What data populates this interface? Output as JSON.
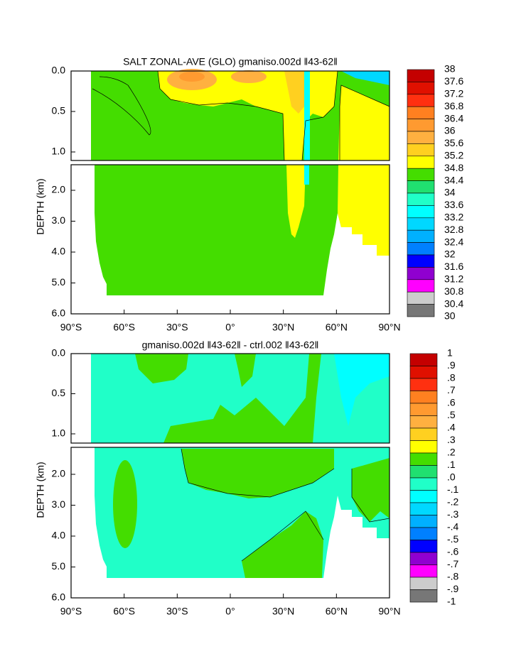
{
  "chart_data": [
    {
      "type": "contour",
      "title": "SALT ZONAL-AVE (GLO) gmaniso.002d ‖43-62‖",
      "ylabel": "DEPTH (km)",
      "xlim": [
        -90,
        90
      ],
      "xticks": [
        {
          "value": -90,
          "label": "90°S"
        },
        {
          "value": -60,
          "label": "60°S"
        },
        {
          "value": -30,
          "label": "30°S"
        },
        {
          "value": 0,
          "label": "0°"
        },
        {
          "value": 30,
          "label": "30°N"
        },
        {
          "value": 60,
          "label": "60°N"
        },
        {
          "value": 90,
          "label": "90°N"
        }
      ],
      "ylim": [
        0,
        6
      ],
      "yticks": [
        {
          "value": 0,
          "label": "0.0"
        },
        0.5,
        {
          "value": 1,
          "label": "1.0"
        },
        {
          "value": 2,
          "label": "2.0"
        },
        {
          "value": 3,
          "label": "3.0"
        },
        {
          "value": 4,
          "label": "4.0"
        },
        {
          "value": 5,
          "label": "5.0"
        },
        {
          "value": 6,
          "label": "6.0"
        }
      ],
      "levels": [
        38,
        37.6,
        37.2,
        36.8,
        36.4,
        36,
        35.6,
        35.2,
        34.8,
        34.4,
        34,
        33.6,
        33.2,
        32.8,
        32.4,
        32,
        31.6,
        31.2,
        30.8,
        30.4,
        30
      ],
      "colors": [
        "#c40000",
        "#e01000",
        "#ff3010",
        "#ff8020",
        "#ff9a30",
        "#ffb040",
        "#ffd020",
        "#ffff00",
        "#44dd00",
        "#20e070",
        "#20ffc8",
        "#00ffff",
        "#00d8ff",
        "#00b0ff",
        "#0080ff",
        "#0000ff",
        "#9000d0",
        "#ff00ff",
        "#cccccc",
        "#777777"
      ]
    },
    {
      "type": "contour",
      "title": "gmaniso.002d ‖43-62‖ - ctrl.002 ‖43-62‖",
      "ylabel": "DEPTH (km)",
      "xlim": [
        -90,
        90
      ],
      "xticks": [
        {
          "value": -90,
          "label": "90°S"
        },
        {
          "value": -60,
          "label": "60°S"
        },
        {
          "value": -30,
          "label": "30°S"
        },
        {
          "value": 0,
          "label": "0°"
        },
        {
          "value": 30,
          "label": "30°N"
        },
        {
          "value": 60,
          "label": "60°N"
        },
        {
          "value": 90,
          "label": "90°N"
        }
      ],
      "ylim": [
        0,
        6
      ],
      "yticks": [
        {
          "value": 0,
          "label": "0.0"
        },
        0.5,
        {
          "value": 1,
          "label": "1.0"
        },
        {
          "value": 2,
          "label": "2.0"
        },
        {
          "value": 3,
          "label": "3.0"
        },
        {
          "value": 4,
          "label": "4.0"
        },
        {
          "value": 5,
          "label": "5.0"
        },
        {
          "value": 6,
          "label": "6.0"
        }
      ],
      "levels": [
        1,
        {
          "value": 0.9,
          "label": ".9"
        },
        {
          "value": 0.8,
          "label": ".8"
        },
        {
          "value": 0.7,
          "label": ".7"
        },
        {
          "value": 0.6,
          "label": ".6"
        },
        {
          "value": 0.5,
          "label": ".5"
        },
        {
          "value": 0.4,
          "label": ".4"
        },
        {
          "value": 0.3,
          "label": ".3"
        },
        {
          "value": 0.2,
          "label": ".2"
        },
        {
          "value": 0.1,
          "label": ".1"
        },
        {
          "value": 0,
          "label": ".0"
        },
        {
          "value": -0.1,
          "label": "-.1"
        },
        {
          "value": -0.2,
          "label": "-.2"
        },
        {
          "value": -0.3,
          "label": "-.3"
        },
        {
          "value": -0.4,
          "label": "-.4"
        },
        {
          "value": -0.5,
          "label": "-.5"
        },
        {
          "value": -0.6,
          "label": "-.6"
        },
        {
          "value": -0.7,
          "label": "-.7"
        },
        {
          "value": -0.8,
          "label": "-.8"
        },
        {
          "value": -0.9,
          "label": "-.9"
        },
        -1
      ],
      "colors": [
        "#c40000",
        "#e01000",
        "#ff3010",
        "#ff8020",
        "#ff9a30",
        "#ffb040",
        "#ffd020",
        "#ffff00",
        "#44dd00",
        "#20e070",
        "#20ffc8",
        "#00ffff",
        "#00d8ff",
        "#00b0ff",
        "#0080ff",
        "#0000ff",
        "#9000d0",
        "#ff00ff",
        "#cccccc",
        "#777777"
      ]
    }
  ]
}
